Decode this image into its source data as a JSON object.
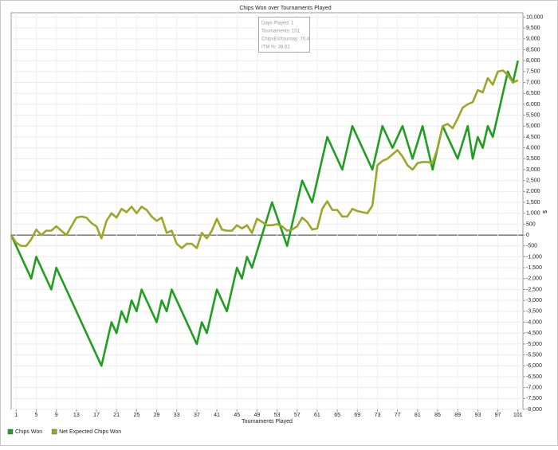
{
  "chart_data": {
    "type": "line",
    "title": "Chips Won over Tournaments Played",
    "x_label": "Tournaments Played",
    "y_label": "$",
    "grid": true,
    "legend": "bottom-left",
    "xlim": [
      0,
      102
    ],
    "ylim": [
      -8000,
      10200
    ],
    "xticks": [
      1,
      5,
      9,
      13,
      17,
      21,
      25,
      29,
      33,
      37,
      41,
      45,
      49,
      53,
      57,
      61,
      65,
      69,
      73,
      77,
      81,
      85,
      89,
      93,
      97,
      101
    ],
    "yticks": [
      {
        "value": 10000,
        "label": "10,000"
      },
      {
        "value": 9500,
        "label": "9,500"
      },
      {
        "value": 9000,
        "label": "9,000"
      },
      {
        "value": 8500,
        "label": "8,500"
      },
      {
        "value": 8000,
        "label": "8,000"
      },
      {
        "value": 7500,
        "label": "7,500"
      },
      {
        "value": 7000,
        "label": "7,000"
      },
      {
        "value": 6500,
        "label": "6,500"
      },
      {
        "value": 6000,
        "label": "6,000"
      },
      {
        "value": 5500,
        "label": "5,500"
      },
      {
        "value": 5000,
        "label": "5,000"
      },
      {
        "value": 4500,
        "label": "4,500"
      },
      {
        "value": 4000,
        "label": "4,000"
      },
      {
        "value": 3500,
        "label": "3,500"
      },
      {
        "value": 3000,
        "label": "3,000"
      },
      {
        "value": 2500,
        "label": "2,500"
      },
      {
        "value": 2000,
        "label": "2,000"
      },
      {
        "value": 1500,
        "label": "1,500"
      },
      {
        "value": 1000,
        "label": "1,000"
      },
      500,
      0,
      -500,
      {
        "value": -1000,
        "label": "-1,000"
      },
      {
        "value": -1500,
        "label": "-1,500"
      },
      {
        "value": -2000,
        "label": "-2,000"
      },
      {
        "value": -2500,
        "label": "-2,500"
      },
      {
        "value": -3000,
        "label": "-3,000"
      },
      {
        "value": -3500,
        "label": "-3,500"
      },
      {
        "value": -4000,
        "label": "-4,000"
      },
      {
        "value": -4500,
        "label": "-4,500"
      },
      {
        "value": -5000,
        "label": "-5,000"
      },
      {
        "value": -5500,
        "label": "-5,500"
      },
      {
        "value": -6000,
        "label": "-6,000"
      },
      {
        "value": -6500,
        "label": "-6,500"
      },
      {
        "value": -7000,
        "label": "-7,000"
      },
      {
        "value": -7500,
        "label": "-7,500"
      },
      {
        "value": -8000,
        "label": "-8,000"
      }
    ],
    "tooltip": [
      "Days Played: 1",
      "Tournaments: 101",
      "ChipsEV/tournay: 70.4",
      "ITM %: 38.61"
    ],
    "series": [
      {
        "name": "Chips Won",
        "color": "#1f9e1f",
        "x": [
          0,
          4,
          5,
          8,
          9,
          18,
          20,
          21,
          22,
          23,
          24,
          25,
          26,
          29,
          30,
          31,
          32,
          37,
          38,
          39,
          41,
          43,
          45,
          46,
          47,
          48,
          52,
          55,
          58,
          60,
          63,
          66,
          68,
          72,
          74,
          76,
          78,
          80,
          82,
          84,
          86,
          89,
          91,
          92,
          93,
          94,
          95,
          96,
          99,
          100,
          101
        ],
        "values": [
          0,
          -2000,
          -1000,
          -2500,
          -1500,
          -6000,
          -4000,
          -4500,
          -3500,
          -4000,
          -3000,
          -3500,
          -2500,
          -4000,
          -3000,
          -3500,
          -2500,
          -5000,
          -4000,
          -4500,
          -2500,
          -3500,
          -1500,
          -2000,
          -1000,
          -1500,
          1500,
          -500,
          2500,
          1500,
          4500,
          3000,
          5000,
          3000,
          5000,
          4000,
          5000,
          3500,
          5000,
          3000,
          5000,
          3500,
          5000,
          3500,
          4500,
          4000,
          5000,
          4500,
          7500,
          7000,
          8000
        ]
      },
      {
        "name": "Net Expected Chips Won",
        "color": "#9ea62a",
        "x": [
          0,
          1,
          2,
          3,
          4,
          5,
          6,
          7,
          8,
          9,
          10,
          11,
          12,
          13,
          14,
          15,
          16,
          17,
          18,
          19,
          20,
          21,
          22,
          23,
          24,
          25,
          26,
          27,
          28,
          29,
          30,
          31,
          32,
          33,
          34,
          35,
          36,
          37,
          38,
          39,
          40,
          41,
          42,
          43,
          44,
          45,
          46,
          47,
          48,
          49,
          50,
          51,
          52,
          53,
          54,
          55,
          56,
          57,
          58,
          59,
          60,
          61,
          62,
          63,
          64,
          65,
          66,
          67,
          68,
          69,
          70,
          71,
          72,
          73,
          74,
          75,
          76,
          77,
          78,
          79,
          80,
          81,
          82,
          83,
          84,
          85,
          86,
          87,
          88,
          89,
          90,
          91,
          92,
          93,
          94,
          95,
          96,
          97,
          98,
          99,
          100,
          101
        ],
        "values": [
          0,
          -350,
          -500,
          -500,
          -200,
          250,
          0,
          200,
          200,
          400,
          200,
          0,
          400,
          800,
          850,
          800,
          550,
          400,
          -150,
          650,
          1000,
          800,
          1200,
          1050,
          1300,
          1000,
          1300,
          1150,
          850,
          650,
          800,
          100,
          200,
          -400,
          -600,
          -400,
          -400,
          -600,
          100,
          -150,
          200,
          750,
          250,
          200,
          200,
          450,
          300,
          450,
          100,
          750,
          600,
          450,
          450,
          500,
          400,
          200,
          250,
          400,
          800,
          600,
          250,
          300,
          1200,
          1550,
          1150,
          1150,
          850,
          850,
          1200,
          1100,
          1050,
          1000,
          1350,
          3200,
          3400,
          3500,
          3700,
          3900,
          3600,
          3200,
          3000,
          3300,
          3350,
          3350,
          3300,
          4000,
          5000,
          5100,
          4900,
          5350,
          5850,
          6000,
          6100,
          6650,
          6550,
          7200,
          6900,
          7500,
          7550,
          7350,
          7000,
          7100
        ]
      }
    ]
  }
}
